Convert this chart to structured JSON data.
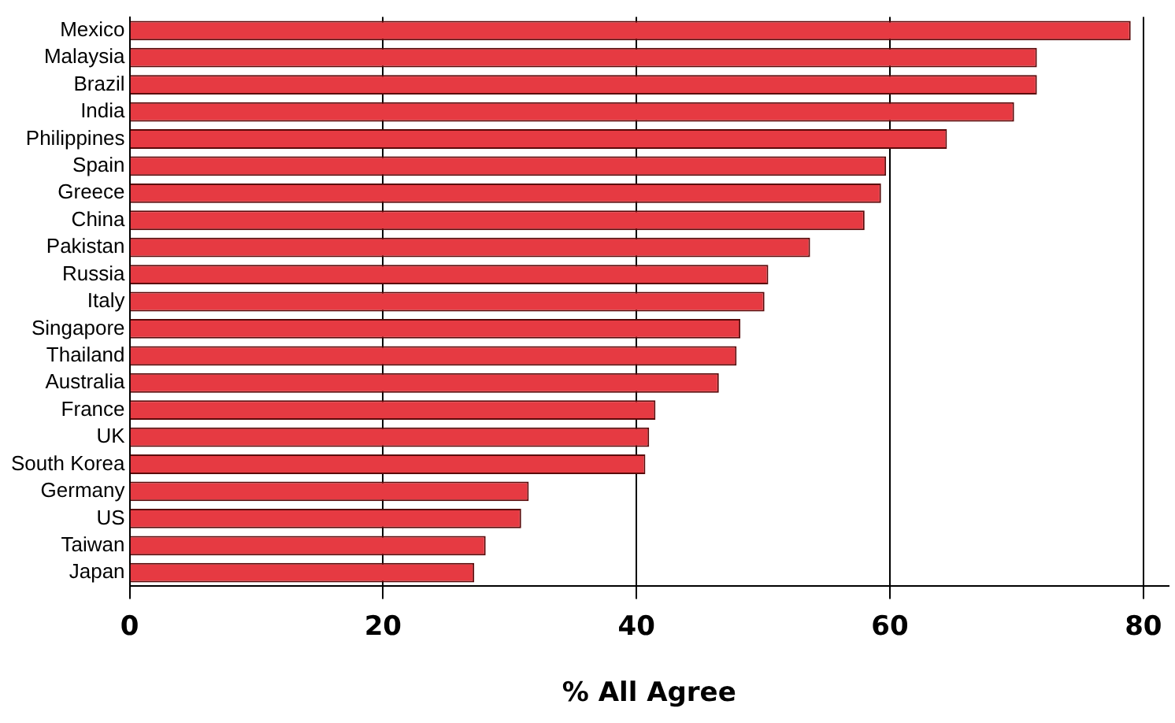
{
  "chart_data": {
    "type": "bar",
    "orientation": "horizontal",
    "xlabel": "% All Agree",
    "categories": [
      "Mexico",
      "Malaysia",
      "Brazil",
      "India",
      "Philippines",
      "Spain",
      "Greece",
      "China",
      "Pakistan",
      "Russia",
      "Italy",
      "Singapore",
      "Thailand",
      "Australia",
      "France",
      "UK",
      "South Korea",
      "Germany",
      "US",
      "Taiwan",
      "Japan"
    ],
    "values": [
      79,
      71.6,
      71.6,
      69.8,
      64.5,
      59.7,
      59.3,
      58,
      53.7,
      50.4,
      50.1,
      48.2,
      47.9,
      46.5,
      41.5,
      41,
      40.7,
      31.5,
      30.9,
      28.1,
      27.2
    ],
    "color": "#e63a42",
    "xlim": [
      0,
      82
    ],
    "xticks": [
      0,
      20,
      40,
      60,
      80
    ],
    "grid": "x",
    "legend": false
  }
}
